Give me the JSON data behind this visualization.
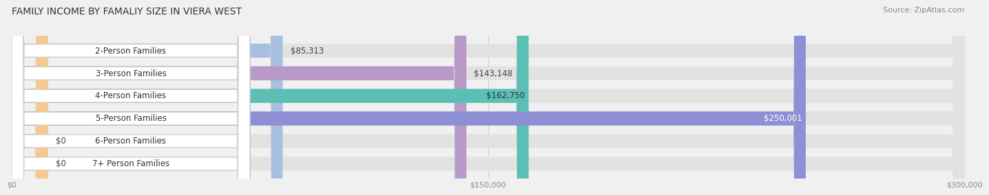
{
  "title": "FAMILY INCOME BY FAMALIY SIZE IN VIERA WEST",
  "source": "Source: ZipAtlas.com",
  "categories": [
    "2-Person Families",
    "3-Person Families",
    "4-Person Families",
    "5-Person Families",
    "6-Person Families",
    "7+ Person Families"
  ],
  "values": [
    85313,
    143148,
    162750,
    250001,
    0,
    0
  ],
  "bar_colors": [
    "#a8bfe0",
    "#b89ac8",
    "#5bbfb5",
    "#8e8fd4",
    "#f4a0b0",
    "#f5c990"
  ],
  "label_colors": [
    "#333333",
    "#333333",
    "#333333",
    "#ffffff",
    "#333333",
    "#333333"
  ],
  "value_labels": [
    "$85,313",
    "$143,148",
    "$162,750",
    "$250,001",
    "$0",
    "$0"
  ],
  "xlim": [
    0,
    300000
  ],
  "xticklabels": [
    "$0",
    "$150,000",
    "$300,000"
  ],
  "xtick_vals": [
    0,
    150000,
    300000
  ],
  "background_color": "#f0f0f0",
  "bar_bg_color": "#e2e2e2",
  "label_box_color": "#ffffff",
  "bar_height": 0.62,
  "title_fontsize": 10,
  "source_fontsize": 8,
  "label_fontsize": 8.5,
  "value_fontsize": 8.5
}
